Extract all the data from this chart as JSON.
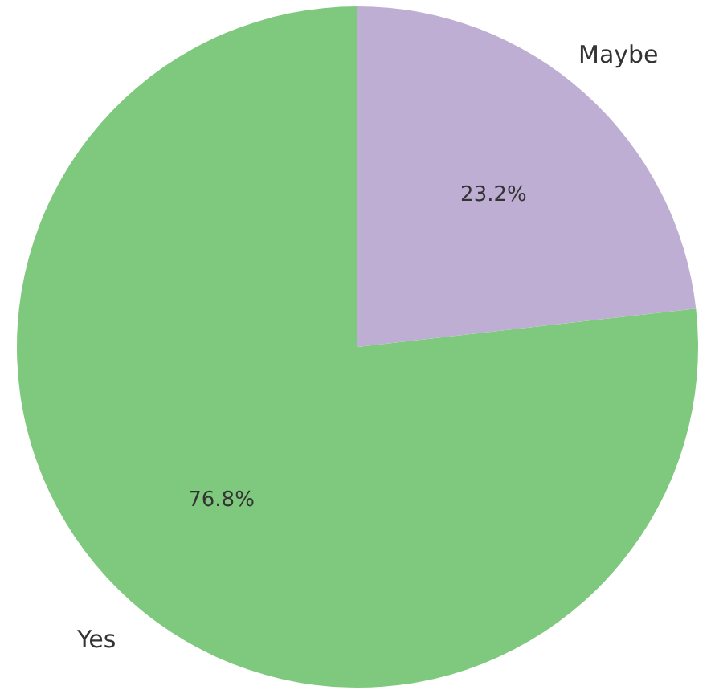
{
  "chart_data": {
    "type": "pie",
    "categories": [
      "Maybe",
      "Yes"
    ],
    "values": [
      23.2,
      76.8
    ],
    "colors": [
      "#beaed4",
      "#7fc97f"
    ],
    "value_labels": [
      "23.2%",
      "76.8%"
    ]
  }
}
